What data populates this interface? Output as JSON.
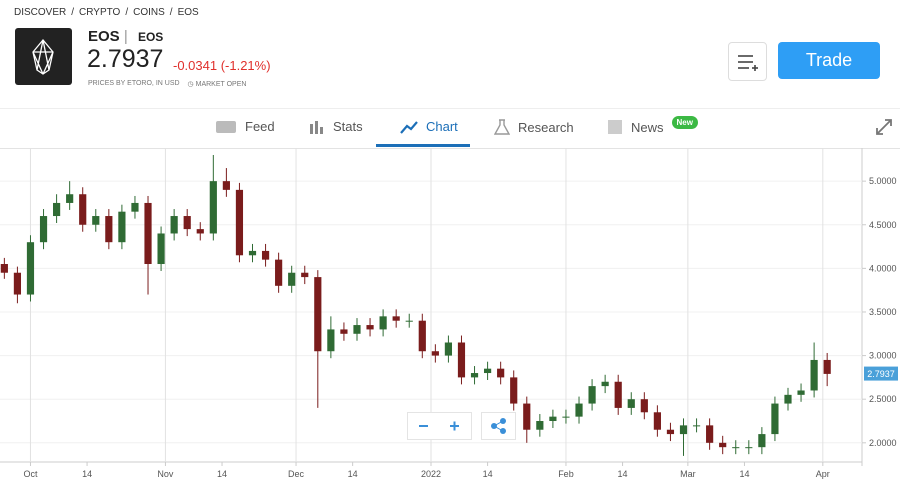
{
  "breadcrumb": [
    "DISCOVER",
    "CRYPTO",
    "COINS",
    "EOS"
  ],
  "header": {
    "name": "EOS",
    "separator": "|",
    "ticker": "EOS",
    "price": "2.7937",
    "change": "-0.0341 (-1.21%)",
    "source": "PRICES BY ETORO, IN USD",
    "market_status": "MARKET OPEN",
    "trade_button": "Trade"
  },
  "tabs": [
    {
      "label": "Feed"
    },
    {
      "label": "Stats"
    },
    {
      "label": "Chart",
      "active": true
    },
    {
      "label": "Research"
    },
    {
      "label": "News",
      "badge": "New"
    }
  ],
  "chart_data": {
    "type": "candlestick",
    "up_color": "#2f6b34",
    "down_color": "#7a1c1c",
    "grid": true,
    "last_price": 2.7937,
    "x": [
      "2021-09-25",
      "2021-09-28",
      "2021-10-01",
      "2021-10-04",
      "2021-10-07",
      "2021-10-10",
      "2021-10-13",
      "2021-10-16",
      "2021-10-19",
      "2021-10-22",
      "2021-10-25",
      "2021-10-28",
      "2021-10-31",
      "2021-11-03",
      "2021-11-06",
      "2021-11-09",
      "2021-11-12",
      "2021-11-15",
      "2021-11-18",
      "2021-11-21",
      "2021-11-24",
      "2021-11-27",
      "2021-11-30",
      "2021-12-03",
      "2021-12-06",
      "2021-12-09",
      "2021-12-12",
      "2021-12-15",
      "2021-12-18",
      "2021-12-21",
      "2021-12-24",
      "2021-12-27",
      "2021-12-30",
      "2022-01-02",
      "2022-01-05",
      "2022-01-08",
      "2022-01-11",
      "2022-01-14",
      "2022-01-17",
      "2022-01-20",
      "2022-01-23",
      "2022-01-26",
      "2022-01-29",
      "2022-02-01",
      "2022-02-04",
      "2022-02-07",
      "2022-02-10",
      "2022-02-13",
      "2022-02-16",
      "2022-02-19",
      "2022-02-22",
      "2022-02-25",
      "2022-02-28",
      "2022-03-03",
      "2022-03-06",
      "2022-03-09",
      "2022-03-12",
      "2022-03-15",
      "2022-03-18",
      "2022-03-21",
      "2022-03-24",
      "2022-03-27",
      "2022-03-30",
      "2022-04-02"
    ],
    "open": [
      4.05,
      3.95,
      3.7,
      4.3,
      4.6,
      4.75,
      4.85,
      4.5,
      4.6,
      4.3,
      4.65,
      4.75,
      4.05,
      4.4,
      4.6,
      4.45,
      4.4,
      5.0,
      4.9,
      4.15,
      4.2,
      4.1,
      3.8,
      3.95,
      3.9,
      3.05,
      3.3,
      3.25,
      3.35,
      3.3,
      3.45,
      3.4,
      3.4,
      3.05,
      3.0,
      3.15,
      2.75,
      2.8,
      2.85,
      2.75,
      2.45,
      2.15,
      2.25,
      2.3,
      2.3,
      2.45,
      2.65,
      2.7,
      2.4,
      2.5,
      2.35,
      2.15,
      2.1,
      2.2,
      2.2,
      2.0,
      1.95,
      1.95,
      1.95,
      2.1,
      2.45,
      2.55,
      2.6,
      2.95
    ],
    "high": [
      4.12,
      4.02,
      4.38,
      4.68,
      4.85,
      5.0,
      4.93,
      4.68,
      4.68,
      4.73,
      4.83,
      4.83,
      4.48,
      4.68,
      4.68,
      4.53,
      5.3,
      5.15,
      4.98,
      4.28,
      4.28,
      4.18,
      4.03,
      4.03,
      3.98,
      3.45,
      3.38,
      3.43,
      3.43,
      3.53,
      3.53,
      3.48,
      3.48,
      3.13,
      3.23,
      3.23,
      2.88,
      2.93,
      2.93,
      2.83,
      2.53,
      2.33,
      2.38,
      2.38,
      2.53,
      2.73,
      2.78,
      2.78,
      2.58,
      2.58,
      2.43,
      2.23,
      2.28,
      2.28,
      2.28,
      2.08,
      2.03,
      2.03,
      2.18,
      2.53,
      2.63,
      2.68,
      3.15,
      3.03
    ],
    "low": [
      3.88,
      3.6,
      3.62,
      4.22,
      4.52,
      4.67,
      4.42,
      4.42,
      4.22,
      4.22,
      4.57,
      3.7,
      3.97,
      4.32,
      4.37,
      4.32,
      4.32,
      4.82,
      4.07,
      4.07,
      4.02,
      3.72,
      3.72,
      3.82,
      2.4,
      2.97,
      3.17,
      3.17,
      3.22,
      3.22,
      3.32,
      3.32,
      2.97,
      2.92,
      2.92,
      2.67,
      2.67,
      2.72,
      2.67,
      2.37,
      2.0,
      2.07,
      2.17,
      2.22,
      2.22,
      2.37,
      2.57,
      2.32,
      2.32,
      2.27,
      2.07,
      2.02,
      1.85,
      2.12,
      1.92,
      1.87,
      1.87,
      1.87,
      1.87,
      2.02,
      2.37,
      2.47,
      2.52,
      2.65
    ],
    "close": [
      3.95,
      3.7,
      4.3,
      4.6,
      4.75,
      4.85,
      4.5,
      4.6,
      4.3,
      4.65,
      4.75,
      4.05,
      4.4,
      4.6,
      4.45,
      4.4,
      5.0,
      4.9,
      4.15,
      4.2,
      4.1,
      3.8,
      3.95,
      3.9,
      3.05,
      3.3,
      3.25,
      3.35,
      3.3,
      3.45,
      3.4,
      3.4,
      3.05,
      3.0,
      3.15,
      2.75,
      2.8,
      2.85,
      2.75,
      2.45,
      2.15,
      2.25,
      2.3,
      2.3,
      2.45,
      2.65,
      2.7,
      2.4,
      2.5,
      2.35,
      2.15,
      2.1,
      2.2,
      2.2,
      2.0,
      1.95,
      1.95,
      1.95,
      2.1,
      2.45,
      2.55,
      2.6,
      2.95,
      2.79
    ],
    "xlim": [
      "2021-09-24",
      "2022-04-10"
    ],
    "xticks": [
      {
        "value": "2021-10-01",
        "label": "Oct"
      },
      {
        "value": "2021-10-14",
        "label": "14"
      },
      {
        "value": "2021-11-01",
        "label": "Nov"
      },
      {
        "value": "2021-11-14",
        "label": "14"
      },
      {
        "value": "2021-12-01",
        "label": "Dec"
      },
      {
        "value": "2021-12-14",
        "label": "14"
      },
      {
        "value": "2022-01-01",
        "label": "2022"
      },
      {
        "value": "2022-01-14",
        "label": "14"
      },
      {
        "value": "2022-02-01",
        "label": "Feb"
      },
      {
        "value": "2022-02-14",
        "label": "14"
      },
      {
        "value": "2022-03-01",
        "label": "Mar"
      },
      {
        "value": "2022-03-14",
        "label": "14"
      },
      {
        "value": "2022-04-01",
        "label": "Apr"
      }
    ],
    "ylim": [
      1.78,
      5.38
    ],
    "yticks": [
      {
        "value": 2,
        "label": "2.0000"
      },
      {
        "value": 2.5,
        "label": "2.5000"
      },
      {
        "value": 3,
        "label": "3.0000"
      },
      {
        "value": 3.5,
        "label": "3.5000"
      },
      {
        "value": 4,
        "label": "4.0000"
      },
      {
        "value": 4.5,
        "label": "4.5000"
      },
      {
        "value": 5,
        "label": "5.0000"
      }
    ]
  }
}
